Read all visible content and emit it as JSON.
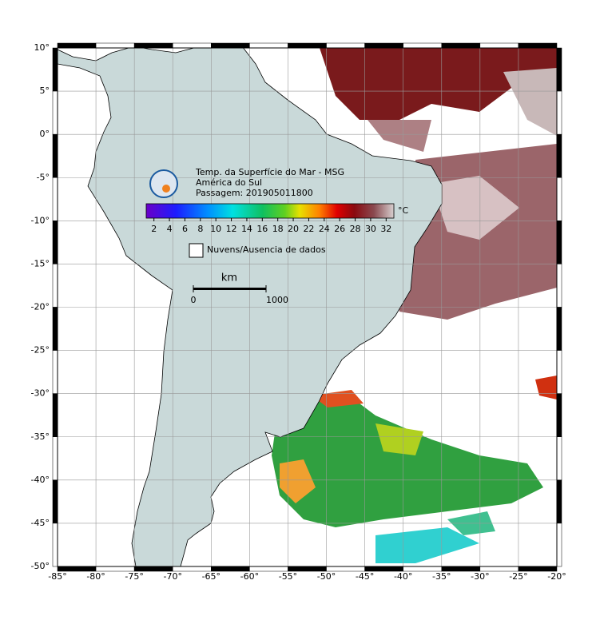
{
  "map": {
    "title_lines": [
      "Temp. da Superfície do Mar - MSG",
      "América do Sul",
      "Passagem: 201905011800"
    ],
    "lon_range": [
      -85,
      -20
    ],
    "lat_range": [
      -50,
      10
    ],
    "lon_ticks": [
      {
        "value": -85,
        "label": "-85°"
      },
      {
        "value": -80,
        "label": "-80°"
      },
      {
        "value": -75,
        "label": "-75°"
      },
      {
        "value": -70,
        "label": "-70°"
      },
      {
        "value": -65,
        "label": "-65°"
      },
      {
        "value": -60,
        "label": "-60°"
      },
      {
        "value": -55,
        "label": "-55°"
      },
      {
        "value": -50,
        "label": "-50°"
      },
      {
        "value": -45,
        "label": "-45°"
      },
      {
        "value": -40,
        "label": "-40°"
      },
      {
        "value": -35,
        "label": "-35°"
      },
      {
        "value": -30,
        "label": "-30°"
      },
      {
        "value": -25,
        "label": "-25°"
      },
      {
        "value": -20,
        "label": "-20°"
      }
    ],
    "lat_ticks": [
      {
        "value": 10,
        "label": "10°"
      },
      {
        "value": 5,
        "label": "5°"
      },
      {
        "value": 0,
        "label": "0°"
      },
      {
        "value": -5,
        "label": "-5°"
      },
      {
        "value": -10,
        "label": "-10°"
      },
      {
        "value": -15,
        "label": "-15°"
      },
      {
        "value": -20,
        "label": "-20°"
      },
      {
        "value": -25,
        "label": "-25°"
      },
      {
        "value": -30,
        "label": "-30°"
      },
      {
        "value": -35,
        "label": "-35°"
      },
      {
        "value": -40,
        "label": "-40°"
      },
      {
        "value": -45,
        "label": "-45°"
      },
      {
        "value": -50,
        "label": "-50°"
      }
    ],
    "colorbar": {
      "range": [
        1,
        33
      ],
      "ticks": [
        2,
        4,
        6,
        8,
        10,
        12,
        14,
        16,
        18,
        20,
        22,
        24,
        26,
        28,
        30,
        32
      ],
      "unit": "°C"
    },
    "legend": "Nuvens/Ausencia de dados",
    "scale_bar": {
      "unit": "km",
      "ticks": [
        0,
        1000
      ]
    }
  }
}
